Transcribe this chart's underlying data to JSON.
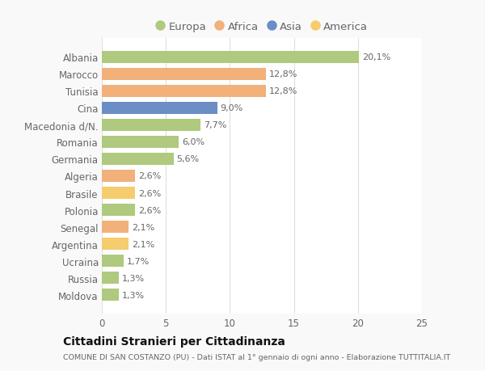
{
  "categories": [
    "Albania",
    "Marocco",
    "Tunisia",
    "Cina",
    "Macedonia d/N.",
    "Romania",
    "Germania",
    "Algeria",
    "Brasile",
    "Polonia",
    "Senegal",
    "Argentina",
    "Ucraina",
    "Russia",
    "Moldova"
  ],
  "values": [
    20.1,
    12.8,
    12.8,
    9.0,
    7.7,
    6.0,
    5.6,
    2.6,
    2.6,
    2.6,
    2.1,
    2.1,
    1.7,
    1.3,
    1.3
  ],
  "labels": [
    "20,1%",
    "12,8%",
    "12,8%",
    "9,0%",
    "7,7%",
    "6,0%",
    "5,6%",
    "2,6%",
    "2,6%",
    "2,6%",
    "2,1%",
    "2,1%",
    "1,7%",
    "1,3%",
    "1,3%"
  ],
  "colors": [
    "#afc97e",
    "#f2b07a",
    "#f2b07a",
    "#6b8ec4",
    "#afc97e",
    "#afc97e",
    "#afc97e",
    "#f2b07a",
    "#f5cc6e",
    "#afc97e",
    "#f2b07a",
    "#f5cc6e",
    "#afc97e",
    "#afc97e",
    "#afc97e"
  ],
  "legend_labels": [
    "Europa",
    "Africa",
    "Asia",
    "America"
  ],
  "legend_colors": [
    "#afc97e",
    "#f2b07a",
    "#6b8ec4",
    "#f5cc6e"
  ],
  "title": "Cittadini Stranieri per Cittadinanza",
  "subtitle": "COMUNE DI SAN COSTANZO (PU) - Dati ISTAT al 1° gennaio di ogni anno - Elaborazione TUTTITALIA.IT",
  "xlim": [
    0,
    25
  ],
  "xticks": [
    0,
    5,
    10,
    15,
    20,
    25
  ],
  "background_color": "#f9f9f9",
  "bar_background": "#ffffff",
  "grid_color": "#e0e0e0",
  "text_color": "#666666",
  "title_color": "#111111",
  "subtitle_color": "#666666",
  "bar_height": 0.72,
  "label_fontsize": 8,
  "tick_fontsize": 8.5
}
